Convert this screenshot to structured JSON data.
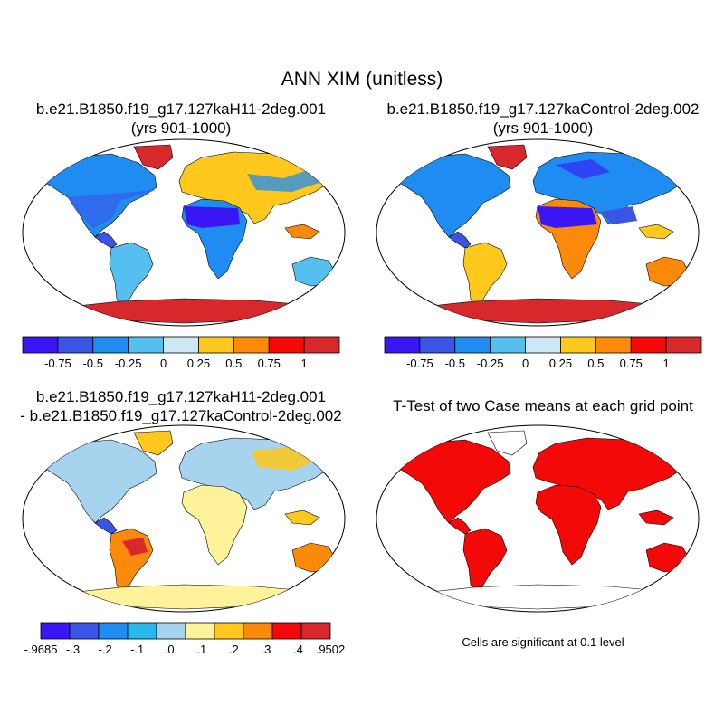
{
  "title": "ANN XIM (unitless)",
  "panels": [
    {
      "title_line1": "b.e21.B1850.f19_g17.127kaH11-2deg.001",
      "title_line2": "(yrs 901-1000)"
    },
    {
      "title_line1": "b.e21.B1850.f19_g17.127kaControl-2deg.002",
      "title_line2": "(yrs 901-1000)"
    },
    {
      "title_line1": "b.e21.B1850.f19_g17.127kaH11-2deg.001",
      "title_line2": "- b.e21.B1850.f19_g17.127kaControl-2deg.002"
    },
    {
      "title_line1": "T-Test of two Case means at each grid point",
      "title_line2": ""
    }
  ],
  "colorbars": {
    "case": {
      "colors": [
        "#3b16f5",
        "#3a55e6",
        "#1f8cf2",
        "#55bff0",
        "#cde8f5",
        "#fec81c",
        "#fb8a0b",
        "#f30a08",
        "#d7282c"
      ],
      "labels": [
        "-0.75",
        "-0.5",
        "-0.25",
        "0",
        "0.25",
        "0.5",
        "0.75",
        "1"
      ]
    },
    "diff": {
      "colors": [
        "#3b16f5",
        "#3a55e6",
        "#1f8cf2",
        "#2ab8ee",
        "#a6d3ee",
        "#fef29a",
        "#fec81c",
        "#fb8a0b",
        "#f30a08",
        "#d7282c"
      ],
      "labels": [
        "-.9685",
        "-.3",
        "-.2",
        "-.1",
        ".0",
        ".1",
        ".2",
        ".3",
        ".4",
        ".9502"
      ]
    }
  },
  "significance_note": "Cells are significant at 0.1 level"
}
